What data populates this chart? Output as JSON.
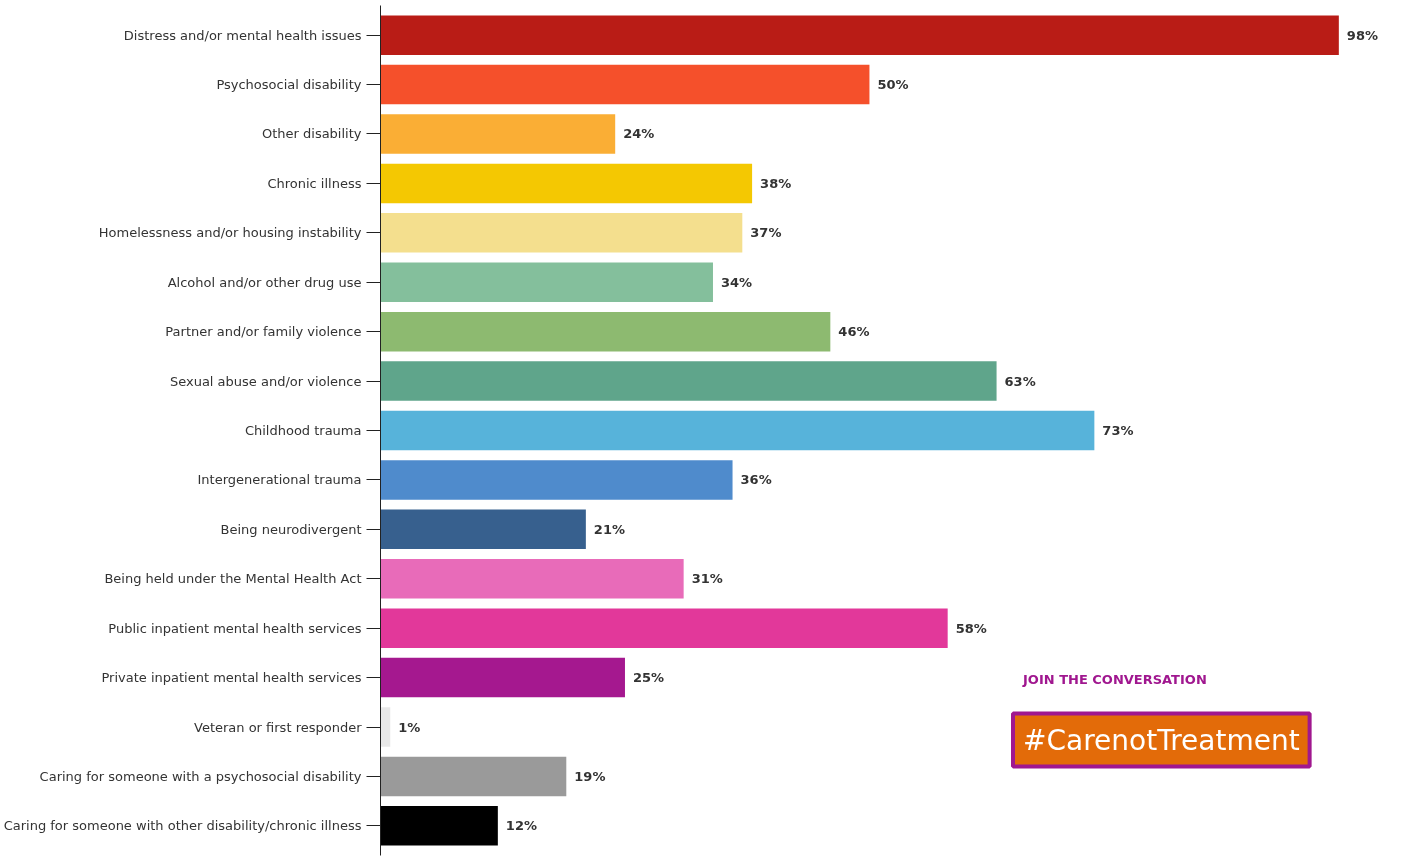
{
  "chart_data": {
    "type": "bar",
    "orientation": "horizontal",
    "categories": [
      "Distress and/or mental health issues",
      "Psychosocial disability",
      "Other disability",
      "Chronic illness",
      "Homelessness and/or housing instability",
      "Alcohol and/or other drug use",
      "Partner and/or family violence",
      "Sexual abuse and/or violence",
      "Childhood trauma",
      "Intergenerational trauma",
      "Being neurodivergent",
      "Being held under the Mental Health Act",
      "Public inpatient mental health services",
      "Private inpatient mental health services",
      "Veteran or first responder",
      "Caring for someone with a psychosocial disability",
      "Caring for someone with other disability/chronic illness"
    ],
    "values": [
      98,
      50,
      24,
      38,
      37,
      34,
      46,
      63,
      73,
      36,
      21,
      31,
      58,
      25,
      1,
      19,
      12
    ],
    "value_labels": [
      "98%",
      "50%",
      "24%",
      "38%",
      "37%",
      "34%",
      "46%",
      "63%",
      "73%",
      "36%",
      "21%",
      "31%",
      "58%",
      "25%",
      "1%",
      "19%",
      "12%"
    ],
    "colors": [
      "#b91c16",
      "#f5502b",
      "#faae35",
      "#f4c802",
      "#f4df8e",
      "#84bf9c",
      "#8dba70",
      "#5fa58b",
      "#57b3da",
      "#4f8bcc",
      "#37608e",
      "#e86bb9",
      "#e2389a",
      "#a5188f",
      "#e8e8e8",
      "#9a9a9a",
      "#000000"
    ],
    "tick_labels": "y",
    "annotations": [
      "JOIN THE CONVERSATION",
      "#CarenotTreatment"
    ]
  }
}
